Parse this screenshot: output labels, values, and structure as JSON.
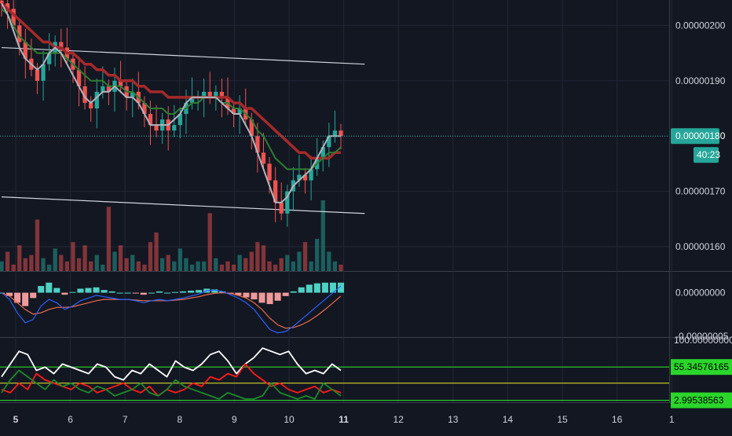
{
  "colors": {
    "background": "#131722",
    "grid": "#232734",
    "axis_text": "#d1d4dc",
    "candle_up": "#26a69a",
    "candle_down": "#ef5350",
    "ma_fast": "#b2b5be",
    "ma_mid": "#2e7d32",
    "ma_slow": "#a52a2a",
    "trendline": "#d1d4dc",
    "price_line": "#26a69a",
    "macd_line": "#2962ff",
    "signal_line": "#ef6c4a",
    "hist_up": "#4fd1c5",
    "hist_down": "#ef9a9a",
    "osc_white": "#ffffff",
    "osc_red": "#ff1a1a",
    "osc_green": "#1b8a2a",
    "level_green": "#2bd62b",
    "level_yellow": "#d4d42a"
  },
  "chart_data": [
    {
      "type": "candlestick",
      "title": "",
      "x_ticks": [
        "5",
        "6",
        "7",
        "8",
        "9",
        "10",
        "11",
        "12",
        "13",
        "14",
        "15",
        "16",
        "1"
      ],
      "y_ticks": [
        "0.00000200",
        "0.00000190",
        "0.00000180",
        "0.00000170",
        "0.00000160"
      ],
      "ylim": [
        1.556e-06,
        2.046e-06
      ],
      "last_price_label": "0.00000180",
      "countdown_label": "40:23",
      "close": [
        2.04e-06,
        2.03e-06,
        2e-06,
        1.97e-06,
        1.94e-06,
        1.92e-06,
        1.9e-06,
        1.93e-06,
        1.95e-06,
        1.97e-06,
        1.96e-06,
        1.94e-06,
        1.92e-06,
        1.89e-06,
        1.86e-06,
        1.85e-06,
        1.88e-06,
        1.89e-06,
        1.88e-06,
        1.9e-06,
        1.89e-06,
        1.87e-06,
        1.88e-06,
        1.86e-06,
        1.84e-06,
        1.82e-06,
        1.81e-06,
        1.83e-06,
        1.81e-06,
        1.82e-06,
        1.84e-06,
        1.86e-06,
        1.87e-06,
        1.87e-06,
        1.88e-06,
        1.87e-06,
        1.88e-06,
        1.87e-06,
        1.85e-06,
        1.84e-06,
        1.85e-06,
        1.83e-06,
        1.8e-06,
        1.77e-06,
        1.75e-06,
        1.72e-06,
        1.68e-06,
        1.66e-06,
        1.7e-06,
        1.72e-06,
        1.73e-06,
        1.72e-06,
        1.74e-06,
        1.76e-06,
        1.78e-06,
        1.8e-06,
        1.81e-06,
        1.8e-06
      ],
      "ma_fast": [
        2.04e-06,
        2.02e-06,
        1.99e-06,
        1.96e-06,
        1.94e-06,
        1.93e-06,
        1.92e-06,
        1.93e-06,
        1.95e-06,
        1.96e-06,
        1.95e-06,
        1.93e-06,
        1.91e-06,
        1.89e-06,
        1.87e-06,
        1.86e-06,
        1.87e-06,
        1.88e-06,
        1.88e-06,
        1.89e-06,
        1.88e-06,
        1.87e-06,
        1.87e-06,
        1.86e-06,
        1.84e-06,
        1.82e-06,
        1.82e-06,
        1.82e-06,
        1.82e-06,
        1.83e-06,
        1.84e-06,
        1.86e-06,
        1.87e-06,
        1.87e-06,
        1.87e-06,
        1.87e-06,
        1.87e-06,
        1.86e-06,
        1.85e-06,
        1.84e-06,
        1.84e-06,
        1.82e-06,
        1.8e-06,
        1.77e-06,
        1.74e-06,
        1.71e-06,
        1.68e-06,
        1.68e-06,
        1.69e-06,
        1.71e-06,
        1.72e-06,
        1.73e-06,
        1.74e-06,
        1.76e-06,
        1.78e-06,
        1.8e-06,
        1.8e-06,
        1.8e-06
      ],
      "ma_mid": [
        2.03e-06,
        2.02e-06,
        2e-06,
        1.98e-06,
        1.97e-06,
        1.96e-06,
        1.95e-06,
        1.95e-06,
        1.95e-06,
        1.95e-06,
        1.95e-06,
        1.94e-06,
        1.93e-06,
        1.92e-06,
        1.91e-06,
        1.9e-06,
        1.9e-06,
        1.9e-06,
        1.89e-06,
        1.89e-06,
        1.89e-06,
        1.88e-06,
        1.88e-06,
        1.87e-06,
        1.86e-06,
        1.85e-06,
        1.85e-06,
        1.85e-06,
        1.84e-06,
        1.84e-06,
        1.85e-06,
        1.85e-06,
        1.86e-06,
        1.86e-06,
        1.87e-06,
        1.87e-06,
        1.87e-06,
        1.86e-06,
        1.86e-06,
        1.85e-06,
        1.85e-06,
        1.84e-06,
        1.83e-06,
        1.81e-06,
        1.8e-06,
        1.78e-06,
        1.76e-06,
        1.75e-06,
        1.74e-06,
        1.74e-06,
        1.74e-06,
        1.74e-06,
        1.74e-06,
        1.75e-06,
        1.76e-06,
        1.77e-06,
        1.77e-06,
        1.78e-06
      ],
      "ma_slow": [
        2.04e-06,
        2.03e-06,
        2.02e-06,
        2.01e-06,
        2e-06,
        1.99e-06,
        1.98e-06,
        1.97e-06,
        1.97e-06,
        1.96e-06,
        1.96e-06,
        1.95e-06,
        1.95e-06,
        1.94e-06,
        1.93e-06,
        1.93e-06,
        1.92e-06,
        1.92e-06,
        1.91e-06,
        1.91e-06,
        1.9e-06,
        1.9e-06,
        1.9e-06,
        1.89e-06,
        1.89e-06,
        1.88e-06,
        1.88e-06,
        1.88e-06,
        1.87e-06,
        1.87e-06,
        1.87e-06,
        1.87e-06,
        1.87e-06,
        1.87e-06,
        1.87e-06,
        1.87e-06,
        1.87e-06,
        1.87e-06,
        1.87e-06,
        1.86e-06,
        1.86e-06,
        1.85e-06,
        1.85e-06,
        1.84e-06,
        1.83e-06,
        1.82e-06,
        1.81e-06,
        1.8e-06,
        1.79e-06,
        1.78e-06,
        1.77e-06,
        1.77e-06,
        1.76e-06,
        1.76e-06,
        1.76e-06,
        1.76e-06,
        1.77e-06,
        1.77e-06
      ],
      "volume": [
        3,
        6,
        2,
        8,
        4,
        5,
        16,
        4,
        2,
        7,
        5,
        3,
        9,
        4,
        8,
        3,
        5,
        2,
        20,
        6,
        8,
        4,
        5,
        3,
        2,
        9,
        12,
        4,
        5,
        3,
        7,
        4,
        2,
        3,
        3,
        18,
        4,
        2,
        3,
        2,
        5,
        4,
        6,
        9,
        8,
        3,
        2,
        4,
        5,
        3,
        6,
        9,
        3,
        10,
        22,
        6,
        3,
        2
      ],
      "trendlines": [
        {
          "from": [
            0,
            1.96e-06
          ],
          "to": [
            61,
            1.93e-06
          ]
        },
        {
          "from": [
            0,
            1.69e-06
          ],
          "to": [
            61,
            1.66e-06
          ]
        }
      ]
    },
    {
      "type": "macd",
      "y_ticks": [
        "0.00000000",
        "-0.00000005"
      ],
      "ylim": [
        -6.5e-08,
        3e-08
      ],
      "macd": [
        0.0,
        -1e-08,
        -3e-08,
        -4.5e-08,
        -4e-08,
        -2e-08,
        -1e-08,
        -1.5e-08,
        -2.5e-08,
        -2e-08,
        -1.2e-08,
        -8e-09,
        -4e-09,
        -6e-09,
        -8e-09,
        -1e-08,
        -1e-08,
        -1.2e-08,
        -1.5e-08,
        -1.2e-08,
        -1e-08,
        -1.2e-08,
        -1e-08,
        -8e-09,
        -5e-09,
        -2e-09,
        3e-09,
        4e-09,
        2e-09,
        -3e-09,
        -8e-09,
        -1.5e-08,
        -2.5e-08,
        -4e-08,
        -5.5e-08,
        -6e-08,
        -5.8e-08,
        -5e-08,
        -4e-08,
        -3e-08,
        -2e-08,
        -1e-08,
        0.0,
        1e-08
      ],
      "signal": [
        0.0,
        -5e-09,
        -1.5e-08,
        -2.5e-08,
        -3.2e-08,
        -3e-08,
        -2.5e-08,
        -2.2e-08,
        -2.2e-08,
        -2.1e-08,
        -1.8e-08,
        -1.5e-08,
        -1.2e-08,
        -1e-08,
        -1e-08,
        -1e-08,
        -1e-08,
        -1.1e-08,
        -1.2e-08,
        -1.2e-08,
        -1.2e-08,
        -1.2e-08,
        -1.1e-08,
        -1e-08,
        -8e-09,
        -6e-09,
        -3e-09,
        -1e-09,
        0.0,
        -1e-09,
        -4e-09,
        -8e-09,
        -1.5e-08,
        -2.5e-08,
        -3.8e-08,
        -4.8e-08,
        -5.3e-08,
        -5.2e-08,
        -4.8e-08,
        -4.2e-08,
        -3.4e-08,
        -2.5e-08,
        -1.5e-08,
        -5e-09
      ]
    },
    {
      "type": "line",
      "y_ticks": [
        "100.00000000",
        "55.34576165",
        "2.99538563"
      ],
      "ylim": [
        0,
        100
      ],
      "levels": [
        {
          "value": 55.34576165,
          "color": "level_green"
        },
        {
          "value": 30,
          "color": "level_yellow"
        },
        {
          "value": 2.99538563,
          "color": "level_green"
        }
      ],
      "series": [
        {
          "color": "osc_white",
          "values": [
            40,
            60,
            80,
            75,
            50,
            55,
            45,
            60,
            55,
            50,
            45,
            60,
            55,
            40,
            35,
            50,
            45,
            60,
            50,
            40,
            65,
            55,
            50,
            60,
            75,
            80,
            65,
            45,
            60,
            70,
            85,
            80,
            75,
            80,
            60,
            45,
            50,
            45,
            60,
            50
          ]
        },
        {
          "color": "osc_red",
          "values": [
            20,
            15,
            30,
            20,
            45,
            35,
            30,
            25,
            20,
            30,
            25,
            15,
            20,
            25,
            30,
            20,
            15,
            25,
            10,
            20,
            15,
            20,
            30,
            25,
            40,
            35,
            45,
            40,
            60,
            45,
            35,
            25,
            30,
            20,
            15,
            20,
            25,
            15,
            20,
            15
          ]
        },
        {
          "color": "osc_green",
          "values": [
            15,
            35,
            50,
            40,
            30,
            20,
            35,
            25,
            30,
            20,
            15,
            25,
            20,
            10,
            15,
            20,
            30,
            15,
            10,
            20,
            35,
            25,
            20,
            15,
            10,
            5,
            15,
            10,
            5,
            5,
            10,
            30,
            15,
            10,
            5,
            10,
            5,
            30,
            20,
            10
          ]
        }
      ]
    }
  ]
}
